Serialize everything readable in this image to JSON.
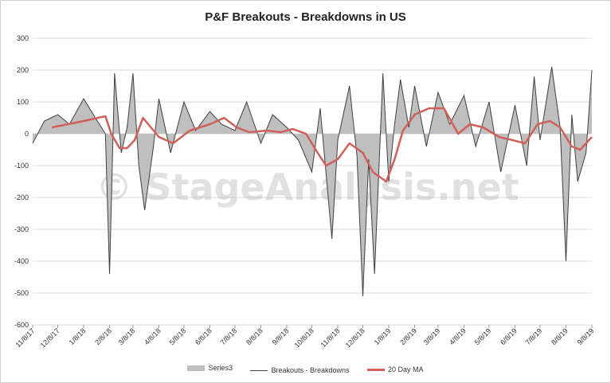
{
  "chart_data": {
    "type": "line",
    "title": "P&F Breakouts - Breakdowns in US",
    "watermark": "© StageAnalysis.net",
    "ylim": [
      -600,
      300
    ],
    "y_ticks": [
      300,
      200,
      100,
      0,
      -100,
      -200,
      -300,
      -400,
      -500,
      -600
    ],
    "x_range": [
      "2017-11-08",
      "2019-09-08"
    ],
    "x_tick_labels": [
      "11/8/17",
      "12/8/17",
      "1/8/18",
      "2/8/18",
      "3/8/18",
      "4/8/18",
      "5/8/18",
      "6/8/18",
      "7/8/18",
      "8/8/18",
      "9/8/18",
      "10/8/18",
      "11/8/18",
      "12/8/18",
      "1/8/19",
      "2/8/19",
      "3/8/19",
      "4/8/19",
      "5/8/19",
      "6/8/19",
      "7/8/19",
      "8/8/19",
      "9/8/19"
    ],
    "x_tick_dates": [
      "2017-11-08",
      "2017-12-08",
      "2018-01-08",
      "2018-02-08",
      "2018-03-08",
      "2018-04-08",
      "2018-05-08",
      "2018-06-08",
      "2018-07-08",
      "2018-08-08",
      "2018-09-08",
      "2018-10-08",
      "2018-11-08",
      "2018-12-08",
      "2019-01-08",
      "2019-02-08",
      "2019-03-08",
      "2019-04-08",
      "2019-05-08",
      "2019-06-08",
      "2019-07-08",
      "2019-08-08",
      "2019-09-08"
    ],
    "legend_position": "bottom",
    "grid": true,
    "colors": {
      "series3": "#bfbfbf",
      "breakouts": "#404040",
      "ma": "#d0605a",
      "grid": "#d9d9d9"
    },
    "series": [
      {
        "name": "Series3",
        "style": "area",
        "x": [
          "2017-11-08",
          "2017-11-22",
          "2017-12-08",
          "2017-12-22",
          "2018-01-08",
          "2018-01-22",
          "2018-02-03",
          "2018-02-08",
          "2018-02-14",
          "2018-02-22",
          "2018-03-01",
          "2018-03-08",
          "2018-03-15",
          "2018-03-22",
          "2018-04-01",
          "2018-04-08",
          "2018-04-22",
          "2018-05-08",
          "2018-05-22",
          "2018-06-08",
          "2018-06-22",
          "2018-07-08",
          "2018-07-22",
          "2018-08-08",
          "2018-08-22",
          "2018-09-08",
          "2018-09-22",
          "2018-10-08",
          "2018-10-18",
          "2018-11-01",
          "2018-11-08",
          "2018-11-22",
          "2018-12-01",
          "2018-12-08",
          "2018-12-15",
          "2018-12-22",
          "2019-01-01",
          "2019-01-08",
          "2019-01-15",
          "2019-01-22",
          "2019-02-01",
          "2019-02-08",
          "2019-02-22",
          "2019-03-08",
          "2019-03-22",
          "2019-04-08",
          "2019-04-22",
          "2019-05-08",
          "2019-05-22",
          "2019-06-08",
          "2019-06-22",
          "2019-07-01",
          "2019-07-08",
          "2019-07-22",
          "2019-08-01",
          "2019-08-08",
          "2019-08-15",
          "2019-08-22",
          "2019-09-01",
          "2019-09-08"
        ],
        "values": [
          -30,
          40,
          60,
          30,
          110,
          50,
          0,
          -440,
          190,
          -60,
          20,
          190,
          -100,
          -240,
          -50,
          110,
          -60,
          100,
          10,
          70,
          30,
          10,
          100,
          -30,
          60,
          20,
          -20,
          -120,
          80,
          -330,
          -20,
          150,
          -70,
          -510,
          -80,
          -440,
          190,
          -150,
          30,
          170,
          20,
          150,
          -40,
          130,
          30,
          120,
          -40,
          100,
          -120,
          90,
          -100,
          180,
          -20,
          210,
          20,
          -400,
          60,
          -150,
          -60,
          200
        ]
      },
      {
        "name": "Breakouts - Breakdowns",
        "style": "line",
        "x": [
          "2017-11-08",
          "2017-11-22",
          "2017-12-08",
          "2017-12-22",
          "2018-01-08",
          "2018-01-22",
          "2018-02-03",
          "2018-02-08",
          "2018-02-14",
          "2018-02-22",
          "2018-03-01",
          "2018-03-08",
          "2018-03-15",
          "2018-03-22",
          "2018-04-01",
          "2018-04-08",
          "2018-04-22",
          "2018-05-08",
          "2018-05-22",
          "2018-06-08",
          "2018-06-22",
          "2018-07-08",
          "2018-07-22",
          "2018-08-08",
          "2018-08-22",
          "2018-09-08",
          "2018-09-22",
          "2018-10-08",
          "2018-10-18",
          "2018-11-01",
          "2018-11-08",
          "2018-11-22",
          "2018-12-01",
          "2018-12-08",
          "2018-12-15",
          "2018-12-22",
          "2019-01-01",
          "2019-01-08",
          "2019-01-15",
          "2019-01-22",
          "2019-02-01",
          "2019-02-08",
          "2019-02-22",
          "2019-03-08",
          "2019-03-22",
          "2019-04-08",
          "2019-04-22",
          "2019-05-08",
          "2019-05-22",
          "2019-06-08",
          "2019-06-22",
          "2019-07-01",
          "2019-07-08",
          "2019-07-22",
          "2019-08-01",
          "2019-08-08",
          "2019-08-15",
          "2019-08-22",
          "2019-09-01",
          "2019-09-08"
        ],
        "values": [
          -30,
          40,
          60,
          30,
          110,
          50,
          0,
          -440,
          190,
          -60,
          20,
          190,
          -100,
          -240,
          -50,
          110,
          -60,
          100,
          10,
          70,
          30,
          10,
          100,
          -30,
          60,
          20,
          -20,
          -120,
          80,
          -330,
          -20,
          150,
          -70,
          -510,
          -80,
          -440,
          190,
          -150,
          30,
          170,
          20,
          150,
          -40,
          130,
          30,
          120,
          -40,
          100,
          -120,
          90,
          -100,
          180,
          -20,
          210,
          20,
          -400,
          60,
          -150,
          -60,
          200
        ]
      },
      {
        "name": "20 Day MA",
        "style": "line",
        "x": [
          "2017-12-01",
          "2017-12-20",
          "2018-01-08",
          "2018-01-25",
          "2018-02-03",
          "2018-02-10",
          "2018-02-20",
          "2018-03-01",
          "2018-03-10",
          "2018-03-20",
          "2018-04-08",
          "2018-04-25",
          "2018-05-15",
          "2018-06-08",
          "2018-06-25",
          "2018-07-10",
          "2018-07-25",
          "2018-08-15",
          "2018-09-01",
          "2018-09-15",
          "2018-10-01",
          "2018-10-15",
          "2018-10-25",
          "2018-11-08",
          "2018-11-22",
          "2018-12-08",
          "2018-12-20",
          "2019-01-05",
          "2019-01-15",
          "2019-01-25",
          "2019-02-08",
          "2019-02-25",
          "2019-03-15",
          "2019-04-01",
          "2019-04-15",
          "2019-05-01",
          "2019-05-20",
          "2019-06-05",
          "2019-06-20",
          "2019-07-05",
          "2019-07-20",
          "2019-08-01",
          "2019-08-15",
          "2019-08-25",
          "2019-09-08"
        ],
        "values": [
          20,
          30,
          40,
          50,
          55,
          0,
          -45,
          -45,
          -20,
          50,
          -10,
          -30,
          10,
          30,
          50,
          20,
          5,
          10,
          5,
          15,
          0,
          -60,
          -100,
          -80,
          -30,
          -60,
          -120,
          -150,
          -80,
          10,
          60,
          80,
          80,
          0,
          30,
          20,
          -10,
          -20,
          -30,
          30,
          40,
          20,
          -40,
          -50,
          -10
        ]
      }
    ]
  }
}
